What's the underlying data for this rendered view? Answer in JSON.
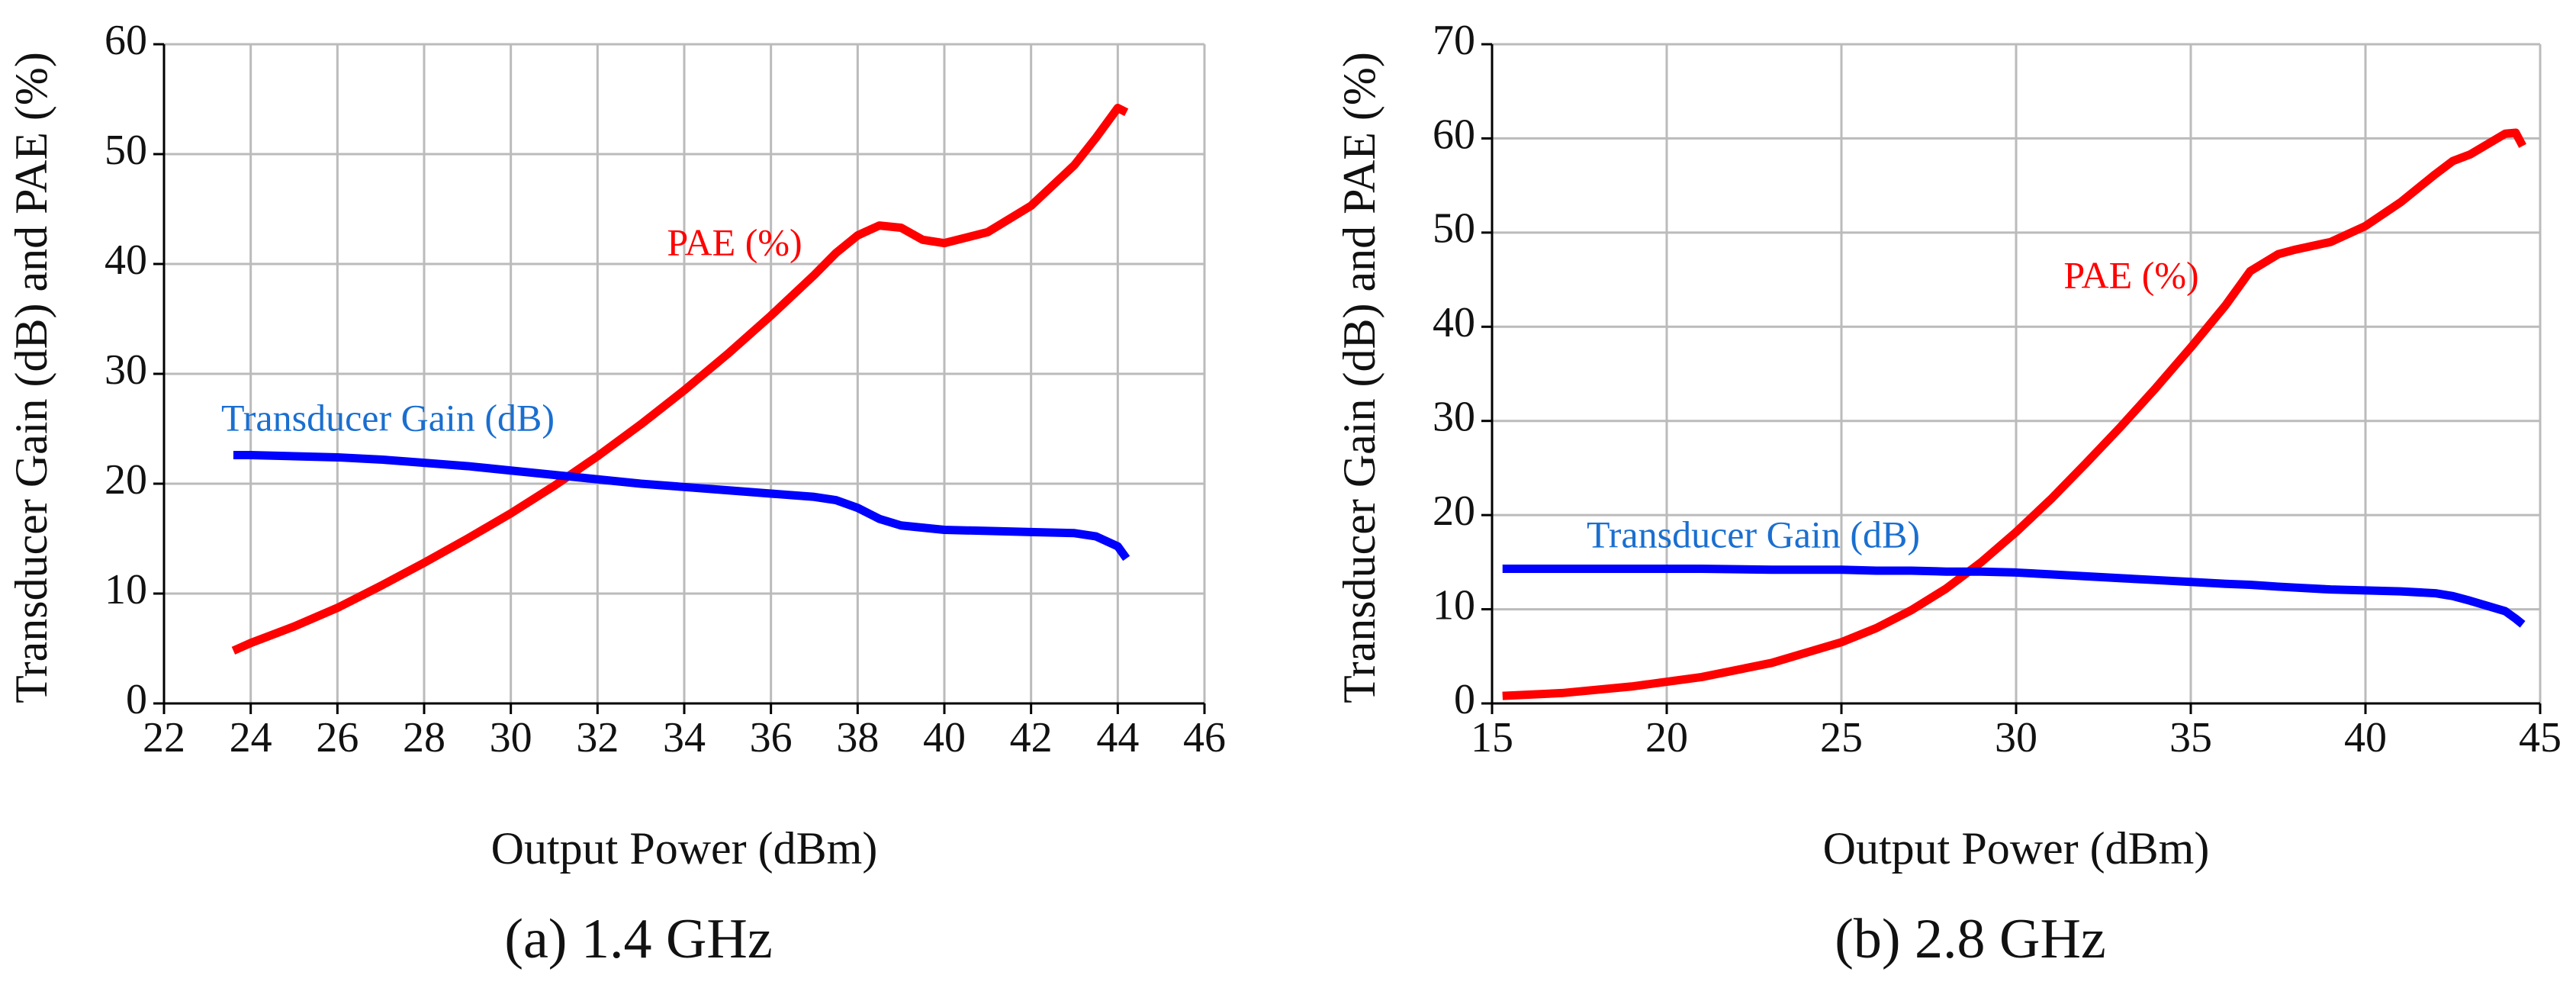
{
  "chart_data": [
    {
      "type": "line",
      "caption": "(a) 1.4 GHz",
      "xlabel": "Output Power (dBm)",
      "ylabel": "Transducer Gain (dB) and PAE (%)",
      "x": [
        23.6,
        24,
        25,
        26,
        27,
        28,
        29,
        30,
        31,
        32,
        33,
        34,
        35,
        36,
        37,
        37.5,
        38,
        38.5,
        39,
        39.5,
        40,
        41,
        42,
        43,
        43.5,
        44,
        44.2
      ],
      "series": [
        {
          "name": "PAE (%)",
          "color": "#ff0000",
          "values": [
            4.8,
            5.5,
            7.0,
            8.7,
            10.7,
            12.8,
            15.0,
            17.3,
            19.8,
            22.5,
            25.4,
            28.5,
            31.8,
            35.3,
            39.0,
            41.0,
            42.6,
            43.5,
            43.3,
            42.2,
            41.9,
            42.9,
            45.3,
            49.0,
            51.5,
            54.2,
            53.8
          ]
        },
        {
          "name": "Transducer Gain (dB)",
          "color": "#0000ff",
          "values": [
            22.6,
            22.6,
            22.5,
            22.4,
            22.2,
            21.9,
            21.6,
            21.2,
            20.8,
            20.4,
            20.0,
            19.7,
            19.4,
            19.1,
            18.8,
            18.5,
            17.8,
            16.8,
            16.2,
            16.0,
            15.8,
            15.7,
            15.6,
            15.5,
            15.2,
            14.3,
            13.2
          ]
        }
      ],
      "xlim": [
        22,
        46
      ],
      "xticks": [
        22,
        24,
        26,
        28,
        30,
        32,
        34,
        36,
        38,
        40,
        42,
        44,
        46
      ],
      "ylim": [
        0,
        60
      ],
      "yticks": [
        0,
        10,
        20,
        30,
        40,
        50,
        60
      ],
      "grid": true
    },
    {
      "type": "line",
      "caption": "(b) 2.8 GHz",
      "xlabel": "Output Power (dBm)",
      "ylabel": "Transducer Gain (dB) and PAE (%)",
      "x": [
        15.3,
        17,
        19,
        21,
        23,
        25,
        26,
        27,
        28,
        29,
        30,
        31,
        32,
        33,
        34,
        35,
        36,
        36.7,
        37.5,
        38,
        39,
        40,
        41,
        42,
        42.5,
        43,
        44,
        44.3,
        44.5
      ],
      "series": [
        {
          "name": "PAE (%)",
          "color": "#ff0000",
          "values": [
            0.8,
            1.1,
            1.8,
            2.8,
            4.3,
            6.5,
            8.0,
            9.9,
            12.2,
            15.0,
            18.2,
            21.7,
            25.5,
            29.4,
            33.5,
            37.8,
            42.3,
            45.9,
            47.7,
            48.2,
            49.0,
            50.7,
            53.2,
            56.2,
            57.6,
            58.3,
            60.5,
            60.6,
            59.2
          ]
        },
        {
          "name": "Transducer Gain (dB)",
          "color": "#0000ff",
          "values": [
            14.3,
            14.3,
            14.3,
            14.3,
            14.2,
            14.2,
            14.1,
            14.1,
            14.0,
            14.0,
            13.9,
            13.7,
            13.5,
            13.3,
            13.1,
            12.9,
            12.7,
            12.6,
            12.4,
            12.3,
            12.1,
            12.0,
            11.9,
            11.7,
            11.4,
            10.9,
            9.8,
            9.0,
            8.4
          ]
        }
      ],
      "xlim": [
        15,
        45
      ],
      "xticks": [
        15,
        20,
        25,
        30,
        35,
        40,
        45
      ],
      "ylim": [
        0,
        70
      ],
      "yticks": [
        0,
        10,
        20,
        30,
        40,
        50,
        60,
        70
      ],
      "grid": true
    }
  ]
}
